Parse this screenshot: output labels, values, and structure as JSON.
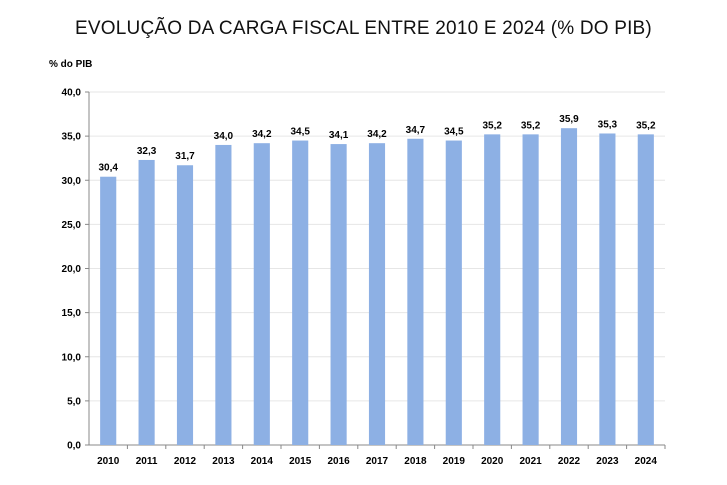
{
  "chart_data": {
    "type": "bar",
    "title": "EVOLUÇÃO DA CARGA FISCAL ENTRE 2010 E 2024 (% DO PIB)",
    "ylabel": "% do PIB",
    "xlabel": "",
    "categories": [
      "2010",
      "2011",
      "2012",
      "2013",
      "2014",
      "2015",
      "2016",
      "2017",
      "2018",
      "2019",
      "2020",
      "2021",
      "2022",
      "2023",
      "2024"
    ],
    "values": [
      30.4,
      32.3,
      31.7,
      34.0,
      34.2,
      34.5,
      34.1,
      34.2,
      34.7,
      34.5,
      35.2,
      35.2,
      35.9,
      35.3,
      35.2
    ],
    "value_labels": [
      "30,4",
      "32,3",
      "31,7",
      "34,0",
      "34,2",
      "34,5",
      "34,1",
      "34,2",
      "34,7",
      "34,5",
      "35,2",
      "35,2",
      "35,9",
      "35,3",
      "35,2"
    ],
    "ylim": [
      0,
      40
    ],
    "yticks": [
      0,
      5,
      10,
      15,
      20,
      25,
      30,
      35,
      40
    ],
    "ytick_labels": [
      "0,0",
      "5,0",
      "10,0",
      "15,0",
      "20,0",
      "25,0",
      "30,0",
      "35,0",
      "40,0"
    ],
    "grid": true,
    "legend": "none",
    "bar_color": "#8DB0E4",
    "grid_color": "#E6E6E6"
  }
}
